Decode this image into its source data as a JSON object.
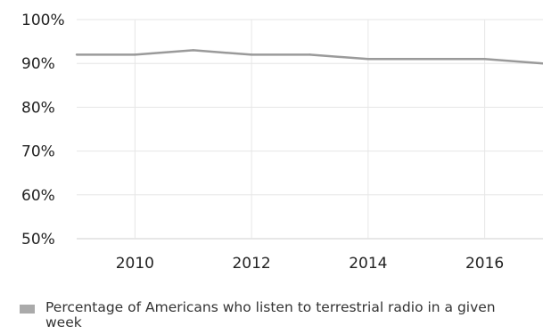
{
  "chart_data": {
    "type": "line",
    "title": "",
    "xlabel": "",
    "ylabel": "",
    "x": [
      2009,
      2010,
      2011,
      2012,
      2013,
      2014,
      2015,
      2016,
      2017
    ],
    "series": [
      {
        "name": "Percentage of Americans who listen to terrestrial radio in a given week",
        "values": [
          92,
          92,
          93,
          92,
          92,
          91,
          91,
          91,
          90
        ],
        "color": "#9a9a9a"
      }
    ],
    "xlim": [
      2009,
      2017
    ],
    "ylim": [
      50,
      100
    ],
    "x_ticks": [
      2010,
      2012,
      2014,
      2016
    ],
    "x_tick_labels": [
      "2010",
      "2012",
      "2014",
      "2016"
    ],
    "y_ticks": [
      50,
      60,
      70,
      80,
      90,
      100
    ],
    "y_tick_labels": [
      "50%",
      "60%",
      "70%",
      "80%",
      "90%",
      "100%"
    ],
    "grid": true,
    "legend_position": "bottom-left"
  }
}
